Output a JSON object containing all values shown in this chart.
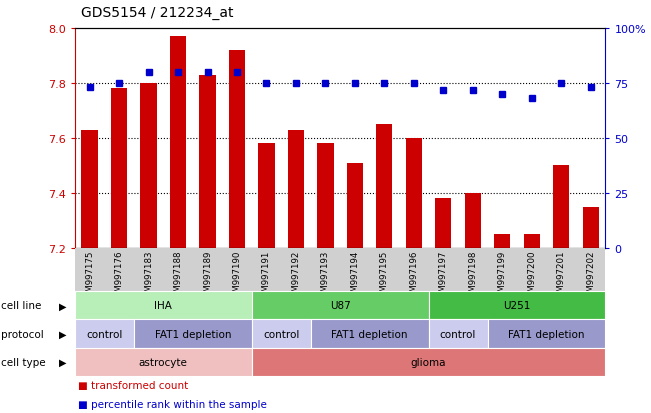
{
  "title": "GDS5154 / 212234_at",
  "samples": [
    "GSM997175",
    "GSM997176",
    "GSM997183",
    "GSM997188",
    "GSM997189",
    "GSM997190",
    "GSM997191",
    "GSM997192",
    "GSM997193",
    "GSM997194",
    "GSM997195",
    "GSM997196",
    "GSM997197",
    "GSM997198",
    "GSM997199",
    "GSM997200",
    "GSM997201",
    "GSM997202"
  ],
  "bar_values": [
    7.63,
    7.78,
    7.8,
    7.97,
    7.83,
    7.92,
    7.58,
    7.63,
    7.58,
    7.51,
    7.65,
    7.6,
    7.38,
    7.4,
    7.25,
    7.25,
    7.5,
    7.35
  ],
  "percentile_values": [
    73,
    75,
    80,
    80,
    80,
    80,
    75,
    75,
    75,
    75,
    75,
    75,
    72,
    72,
    70,
    68,
    75,
    73
  ],
  "bar_color": "#cc0000",
  "percentile_color": "#0000cc",
  "ylim_left": [
    7.2,
    8.0
  ],
  "ylim_right": [
    0,
    100
  ],
  "yticks_left": [
    7.2,
    7.4,
    7.6,
    7.8,
    8.0
  ],
  "yticks_right": [
    0,
    25,
    50,
    75,
    100
  ],
  "ytick_labels_right": [
    "0",
    "25",
    "50",
    "75",
    "100%"
  ],
  "hlines": [
    7.4,
    7.6,
    7.8
  ],
  "cell_line_groups": [
    {
      "label": "IHA",
      "start": 0,
      "end": 5,
      "color": "#b8eeb8"
    },
    {
      "label": "U87",
      "start": 6,
      "end": 11,
      "color": "#66cc66"
    },
    {
      "label": "U251",
      "start": 12,
      "end": 17,
      "color": "#44bb44"
    }
  ],
  "protocol_groups": [
    {
      "label": "control",
      "start": 0,
      "end": 1,
      "color": "#ccccee"
    },
    {
      "label": "FAT1 depletion",
      "start": 2,
      "end": 5,
      "color": "#9999cc"
    },
    {
      "label": "control",
      "start": 6,
      "end": 7,
      "color": "#ccccee"
    },
    {
      "label": "FAT1 depletion",
      "start": 8,
      "end": 11,
      "color": "#9999cc"
    },
    {
      "label": "control",
      "start": 12,
      "end": 13,
      "color": "#ccccee"
    },
    {
      "label": "FAT1 depletion",
      "start": 14,
      "end": 17,
      "color": "#9999cc"
    }
  ],
  "cell_type_groups": [
    {
      "label": "astrocyte",
      "start": 0,
      "end": 5,
      "color": "#f0c0c0"
    },
    {
      "label": "glioma",
      "start": 6,
      "end": 17,
      "color": "#dd7777"
    }
  ],
  "row_labels": [
    "cell line",
    "protocol",
    "cell type"
  ],
  "legend_items": [
    {
      "color": "#cc0000",
      "label": "transformed count"
    },
    {
      "color": "#0000cc",
      "label": "percentile rank within the sample"
    }
  ],
  "fig_width": 6.51,
  "fig_height": 4.14,
  "dpi": 100
}
